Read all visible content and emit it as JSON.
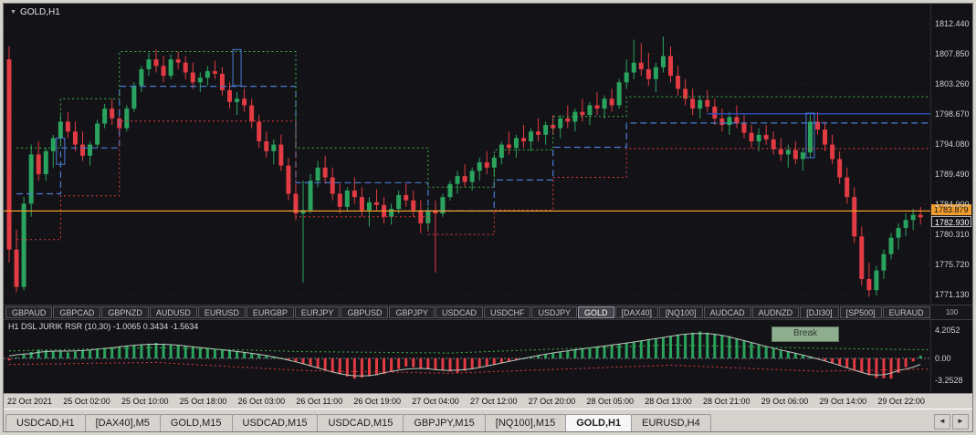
{
  "chart": {
    "title": "GOLD,H1",
    "dropdown_glyph": "▼",
    "price_labels": [
      "1812.440",
      "1807.850",
      "1803.260",
      "1798.670",
      "1794.080",
      "1789.490",
      "1784.900",
      "1780.310",
      "1775.720",
      "1771.130"
    ],
    "badge_orange": "1783.879",
    "badge_price": "1782.930",
    "orange_line_price": 1783.879,
    "candles": [
      [
        1807,
        1809,
        1776,
        1778
      ],
      [
        1778,
        1781,
        1771.5,
        1772.3
      ],
      [
        1772.3,
        1786,
        1771.8,
        1785
      ],
      [
        1785,
        1794,
        1783,
        1792.5
      ],
      [
        1792.5,
        1794.5,
        1788.5,
        1789.5
      ],
      [
        1789.5,
        1793.5,
        1788.5,
        1793
      ],
      [
        1793,
        1795.5,
        1790.5,
        1795
      ],
      [
        1795,
        1798.5,
        1794,
        1797.5
      ],
      [
        1797.5,
        1799,
        1795,
        1796
      ],
      [
        1796,
        1797.5,
        1793,
        1794
      ],
      [
        1794,
        1796,
        1791.5,
        1792.3
      ],
      [
        1792.3,
        1794.5,
        1790.8,
        1794
      ],
      [
        1794,
        1797.8,
        1793.5,
        1797.2
      ],
      [
        1797.2,
        1800.2,
        1796.5,
        1799.5
      ],
      [
        1799.5,
        1801,
        1797,
        1798
      ],
      [
        1798,
        1799.5,
        1795.5,
        1796.5
      ],
      [
        1796.5,
        1800,
        1796,
        1799.5
      ],
      [
        1799.5,
        1803.5,
        1799,
        1803
      ],
      [
        1803,
        1806,
        1802,
        1805.5
      ],
      [
        1805.5,
        1808,
        1804.5,
        1807
      ],
      [
        1807,
        1808.5,
        1805,
        1806
      ],
      [
        1806,
        1807.5,
        1803.5,
        1804.5
      ],
      [
        1804.5,
        1807.8,
        1804,
        1807
      ],
      [
        1807,
        1808.2,
        1805.5,
        1806.5
      ],
      [
        1806.5,
        1807.5,
        1804,
        1805
      ],
      [
        1805,
        1806.5,
        1802.5,
        1803.5
      ],
      [
        1803.5,
        1805,
        1802,
        1804.2
      ],
      [
        1804.2,
        1806,
        1803,
        1805.2
      ],
      [
        1805.2,
        1806.8,
        1804,
        1804.8
      ],
      [
        1804.8,
        1805.8,
        1801.5,
        1802.3
      ],
      [
        1802.3,
        1803.5,
        1799.5,
        1800.5
      ],
      [
        1800.5,
        1802,
        1798.5,
        1801
      ],
      [
        1801,
        1802.5,
        1799,
        1800
      ],
      [
        1800,
        1801,
        1796.5,
        1797.5
      ],
      [
        1797.5,
        1798.5,
        1793.5,
        1794.5
      ],
      [
        1794.5,
        1796,
        1792,
        1793
      ],
      [
        1793,
        1794.8,
        1791,
        1794
      ],
      [
        1794,
        1795.5,
        1790,
        1790.8
      ],
      [
        1790.8,
        1792,
        1785.5,
        1786.5
      ],
      [
        1786.5,
        1788,
        1782.5,
        1783.5
      ],
      [
        1783.5,
        1788.5,
        1773,
        1784
      ],
      [
        1784,
        1789.5,
        1783.5,
        1788.5
      ],
      [
        1788.5,
        1791.5,
        1787.5,
        1790.5
      ],
      [
        1790.5,
        1792.3,
        1788,
        1789
      ],
      [
        1789,
        1790.5,
        1785.5,
        1786.5
      ],
      [
        1786.5,
        1788,
        1783.5,
        1784.5
      ],
      [
        1784.5,
        1787.5,
        1783.8,
        1787
      ],
      [
        1787,
        1789,
        1785,
        1786
      ],
      [
        1786,
        1787.5,
        1783,
        1784
      ],
      [
        1784,
        1786,
        1781.5,
        1785.2
      ],
      [
        1785.2,
        1787.2,
        1784,
        1784.8
      ],
      [
        1784.8,
        1786,
        1782,
        1783
      ],
      [
        1783,
        1785,
        1781.8,
        1784.2
      ],
      [
        1784.2,
        1787,
        1783.5,
        1786.3
      ],
      [
        1786.3,
        1788,
        1784.5,
        1785.5
      ],
      [
        1785.5,
        1787,
        1783,
        1784
      ],
      [
        1784,
        1785.5,
        1780.5,
        1782
      ],
      [
        1782,
        1784.5,
        1780.8,
        1784
      ],
      [
        1784,
        1785.5,
        1774.5,
        1783.5
      ],
      [
        1783.5,
        1786.5,
        1783,
        1786
      ],
      [
        1786,
        1788.5,
        1785.5,
        1788
      ],
      [
        1788,
        1790,
        1786.5,
        1789.2
      ],
      [
        1789.2,
        1791,
        1787.5,
        1788.3
      ],
      [
        1788.3,
        1790.5,
        1787,
        1790
      ],
      [
        1790,
        1792,
        1788.5,
        1791.3
      ],
      [
        1791.3,
        1793,
        1789.5,
        1790.5
      ],
      [
        1790.5,
        1792.5,
        1789,
        1792
      ],
      [
        1792,
        1794.5,
        1791,
        1794
      ],
      [
        1794,
        1796,
        1792.5,
        1793.5
      ],
      [
        1793.5,
        1795.5,
        1792,
        1795
      ],
      [
        1795,
        1797,
        1793.5,
        1794.5
      ],
      [
        1794.5,
        1796.5,
        1793,
        1796
      ],
      [
        1796,
        1798,
        1794.5,
        1795.5
      ],
      [
        1795.5,
        1797.5,
        1794,
        1797
      ],
      [
        1797,
        1798.5,
        1795.5,
        1796.5
      ],
      [
        1796.5,
        1798.5,
        1795,
        1798
      ],
      [
        1798,
        1800,
        1796.5,
        1797.5
      ],
      [
        1797.5,
        1799.5,
        1796,
        1799
      ],
      [
        1799,
        1801,
        1797.5,
        1798.5
      ],
      [
        1798.5,
        1800.5,
        1797,
        1800
      ],
      [
        1800,
        1802,
        1798.5,
        1799.5
      ],
      [
        1799.5,
        1801.5,
        1798,
        1801
      ],
      [
        1801,
        1802.5,
        1799,
        1800
      ],
      [
        1800,
        1804,
        1799.5,
        1803.5
      ],
      [
        1803.5,
        1807,
        1802.5,
        1805
      ],
      [
        1805,
        1810,
        1804,
        1806.5
      ],
      [
        1806.5,
        1809.5,
        1804.5,
        1805.5
      ],
      [
        1805.5,
        1808,
        1803,
        1804
      ],
      [
        1804,
        1806.5,
        1802,
        1805.8
      ],
      [
        1805.8,
        1810.5,
        1805,
        1807.5
      ],
      [
        1807.5,
        1809,
        1803.5,
        1804.5
      ],
      [
        1804.5,
        1806,
        1801.5,
        1802.5
      ],
      [
        1802.5,
        1804,
        1800,
        1801
      ],
      [
        1801,
        1802.5,
        1798.5,
        1799.5
      ],
      [
        1799.5,
        1801.5,
        1798,
        1800.8
      ],
      [
        1800.8,
        1802.3,
        1799,
        1799.8
      ],
      [
        1799.8,
        1801,
        1797,
        1798
      ],
      [
        1798,
        1799.5,
        1796,
        1797
      ],
      [
        1797,
        1799,
        1795.5,
        1798.2
      ],
      [
        1798.2,
        1800,
        1796.5,
        1797.2
      ],
      [
        1797.2,
        1798.5,
        1795,
        1795.8
      ],
      [
        1795.8,
        1797,
        1793.5,
        1794.5
      ],
      [
        1794.5,
        1796.5,
        1793,
        1795.5
      ],
      [
        1795.5,
        1797,
        1794,
        1794.8
      ],
      [
        1794.8,
        1796,
        1792.5,
        1793.3
      ],
      [
        1793.3,
        1795,
        1791.5,
        1792.5
      ],
      [
        1792.5,
        1794,
        1790.5,
        1793.2
      ],
      [
        1793.2,
        1794.5,
        1791,
        1791.8
      ],
      [
        1791.8,
        1793.5,
        1790,
        1792.8
      ],
      [
        1792.8,
        1798.5,
        1792,
        1797.5
      ],
      [
        1797.5,
        1799,
        1795.5,
        1796.3
      ],
      [
        1796.3,
        1797.5,
        1793,
        1794
      ],
      [
        1794,
        1795.5,
        1791,
        1791.8
      ],
      [
        1791.8,
        1793,
        1788,
        1789
      ],
      [
        1789,
        1790.5,
        1785,
        1786
      ],
      [
        1786,
        1787.5,
        1779,
        1780
      ],
      [
        1780,
        1781.5,
        1772.5,
        1773.5
      ],
      [
        1773.5,
        1776,
        1770.8,
        1771.8
      ],
      [
        1771.8,
        1775.5,
        1771,
        1774.8
      ],
      [
        1774.8,
        1778,
        1773.5,
        1777.3
      ],
      [
        1777.3,
        1780.5,
        1776.5,
        1779.8
      ],
      [
        1779.8,
        1782,
        1778,
        1781.3
      ],
      [
        1781.3,
        1783.5,
        1780,
        1782.5
      ],
      [
        1782.5,
        1784.2,
        1781,
        1783.3
      ],
      [
        1783.3,
        1784.5,
        1781.8,
        1782.9
      ]
    ],
    "overlays": {
      "upper_green": [
        [
          1,
          1793.5
        ],
        [
          7,
          1793.5
        ],
        [
          7,
          1801
        ],
        [
          15,
          1801
        ],
        [
          15,
          1808.2
        ],
        [
          39,
          1808.2
        ],
        [
          39,
          1793.5
        ],
        [
          57,
          1793.5
        ],
        [
          57,
          1787.5
        ],
        [
          66,
          1787.5
        ],
        [
          66,
          1793.2
        ],
        [
          74,
          1793.2
        ],
        [
          74,
          1798.3
        ],
        [
          84,
          1798.3
        ],
        [
          84,
          1801.3
        ],
        [
          125,
          1801.3
        ]
      ],
      "lower_red": [
        [
          1,
          1779.5
        ],
        [
          7,
          1779.5
        ],
        [
          7,
          1786.2
        ],
        [
          15,
          1786.2
        ],
        [
          15,
          1797.6
        ],
        [
          39,
          1797.6
        ],
        [
          39,
          1783
        ],
        [
          57,
          1783
        ],
        [
          57,
          1780.3
        ],
        [
          66,
          1780.3
        ],
        [
          66,
          1784
        ],
        [
          74,
          1784
        ],
        [
          74,
          1789
        ],
        [
          84,
          1789
        ],
        [
          84,
          1793.4
        ],
        [
          125,
          1793.4
        ]
      ],
      "mid_blue": [
        [
          1,
          1786.5
        ],
        [
          7,
          1786.5
        ],
        [
          7,
          1793.5
        ],
        [
          15,
          1793.5
        ],
        [
          15,
          1802.9
        ],
        [
          39,
          1802.9
        ],
        [
          39,
          1788.2
        ],
        [
          57,
          1788.2
        ],
        [
          57,
          1783.9
        ],
        [
          66,
          1783.9
        ],
        [
          66,
          1788.6
        ],
        [
          74,
          1788.6
        ],
        [
          74,
          1793.6
        ],
        [
          84,
          1793.6
        ],
        [
          84,
          1797.3
        ],
        [
          125,
          1797.3
        ]
      ],
      "navy_line": [
        [
          95,
          1798.7
        ],
        [
          125,
          1798.7
        ]
      ],
      "highlight_boxes": [
        {
          "bar": 7,
          "from": 1791,
          "to": 1795
        },
        {
          "bar": 31,
          "from": 1803,
          "to": 1808.5
        },
        {
          "bar": 109,
          "from": 1792,
          "to": 1798.8
        }
      ]
    }
  },
  "ticker": {
    "symbols": [
      "GBPAUD",
      "GBPCAD",
      "GBPNZD",
      "AUDUSD",
      "EURUSD",
      "EURGBP",
      "EURJPY",
      "GBPUSD",
      "GBPJPY",
      "USDCAD",
      "USDCHF",
      "USDJPY",
      "GOLD",
      "[DAX40]",
      "[NQ100]",
      "AUDCAD",
      "AUDNZD",
      "[DJI30]",
      "[SP500]",
      "EURAUD"
    ],
    "selected": "GOLD",
    "right_label": "100"
  },
  "indicator": {
    "label": "H1 DSL JURIK RSR (10,30) -1.0065 0.3434 -1.5634",
    "break_label": "Break",
    "scale_labels": [
      "4.2052",
      "0.00",
      "-3.2528"
    ],
    "histogram": [
      [
        0,
        -0.3
      ],
      [
        2,
        0.6
      ],
      [
        4,
        1.3
      ],
      [
        8,
        0.9
      ],
      [
        14,
        1.6
      ],
      [
        20,
        2.3
      ],
      [
        27,
        1.5
      ],
      [
        33,
        0.8
      ],
      [
        37,
        0.1
      ],
      [
        40,
        -0.8
      ],
      [
        44,
        -2.0
      ],
      [
        47,
        -3.0
      ],
      [
        51,
        -2.3
      ],
      [
        54,
        -1.2
      ],
      [
        57,
        -1.5
      ],
      [
        61,
        -2.1
      ],
      [
        64,
        -1.3
      ],
      [
        68,
        -0.5
      ],
      [
        72,
        0.5
      ],
      [
        77,
        1.3
      ],
      [
        83,
        2.1
      ],
      [
        89,
        3.1
      ],
      [
        94,
        4.0
      ],
      [
        98,
        3.3
      ],
      [
        102,
        2.0
      ],
      [
        106,
        1.0
      ],
      [
        109,
        0.3
      ],
      [
        112,
        -0.7
      ],
      [
        115,
        -1.7
      ],
      [
        118,
        -2.9
      ],
      [
        120,
        -3.0
      ],
      [
        122,
        -1.3
      ],
      [
        124,
        0.4
      ]
    ],
    "upper_level": [
      [
        0,
        1.1
      ],
      [
        20,
        1.6
      ],
      [
        40,
        1.0
      ],
      [
        60,
        0.8
      ],
      [
        90,
        2.0
      ],
      [
        110,
        1.5
      ],
      [
        124,
        1.3
      ]
    ],
    "lower_level": [
      [
        0,
        -0.9
      ],
      [
        20,
        -0.6
      ],
      [
        40,
        -1.8
      ],
      [
        60,
        -2.2
      ],
      [
        90,
        -1.0
      ],
      [
        110,
        -1.9
      ],
      [
        124,
        -1.6
      ]
    ]
  },
  "time_axis": {
    "labels": [
      "22 Oct 2021",
      "25 Oct 02:00",
      "25 Oct 10:00",
      "25 Oct 18:00",
      "26 Oct 03:00",
      "26 Oct 11:00",
      "26 Oct 19:00",
      "27 Oct 04:00",
      "27 Oct 12:00",
      "27 Oct 20:00",
      "28 Oct 05:00",
      "28 Oct 13:00",
      "28 Oct 21:00",
      "29 Oct 06:00",
      "29 Oct 14:00",
      "29 Oct 22:00"
    ]
  },
  "tabs": {
    "items": [
      "USDCAD,H1",
      "[DAX40],M5",
      "GOLD,M15",
      "USDCAD,M15",
      "USDCAD,M15",
      "GBPJPY,M15",
      "[NQ100],M15",
      "GOLD,H1",
      "EURUSD,H4"
    ],
    "active": "GOLD,H1",
    "scroll_left": "◄",
    "scroll_right": "►"
  },
  "colors": {
    "bull": "#2aa35f",
    "bear": "#e23b43",
    "channel_up": "#3fb549",
    "channel_dn": "#e23b43",
    "channel_mid": "#4a7bd5",
    "navy": "#2b4fc0",
    "orange": "#f09d2e",
    "signal": "#b9c4b9",
    "grid": "#202027",
    "background": "#131317"
  }
}
